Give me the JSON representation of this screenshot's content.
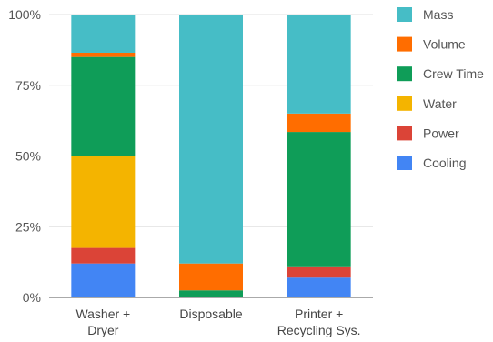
{
  "chart_data": {
    "type": "bar",
    "stacked": true,
    "normalized": true,
    "title": "",
    "xlabel": "",
    "ylabel": "",
    "ylim": [
      0,
      100
    ],
    "yticks": [
      "0%",
      "25%",
      "50%",
      "75%",
      "100%"
    ],
    "ytick_values": [
      0,
      25,
      50,
      75,
      100
    ],
    "grid": true,
    "legend_position": "right",
    "categories": [
      [
        "Washer +",
        "Dryer"
      ],
      [
        "Disposable"
      ],
      [
        "Printer +",
        "Recycling Sys."
      ]
    ],
    "series": [
      {
        "name": "Cooling",
        "color": "#4285f4",
        "values": [
          12,
          0,
          7
        ]
      },
      {
        "name": "Power",
        "color": "#db4437",
        "values": [
          5.5,
          0,
          4
        ]
      },
      {
        "name": "Water",
        "color": "#f4b400",
        "values": [
          32.5,
          0,
          0
        ]
      },
      {
        "name": "Crew Time",
        "color": "#0f9d58",
        "values": [
          35,
          2.5,
          47.5
        ]
      },
      {
        "name": "Volume",
        "color": "#ff6d00",
        "values": [
          1.5,
          9.5,
          6.5
        ]
      },
      {
        "name": "Mass",
        "color": "#46bdc6",
        "values": [
          13.5,
          88,
          35
        ]
      }
    ],
    "legend_order": [
      "Mass",
      "Volume",
      "Crew Time",
      "Water",
      "Power",
      "Cooling"
    ]
  }
}
